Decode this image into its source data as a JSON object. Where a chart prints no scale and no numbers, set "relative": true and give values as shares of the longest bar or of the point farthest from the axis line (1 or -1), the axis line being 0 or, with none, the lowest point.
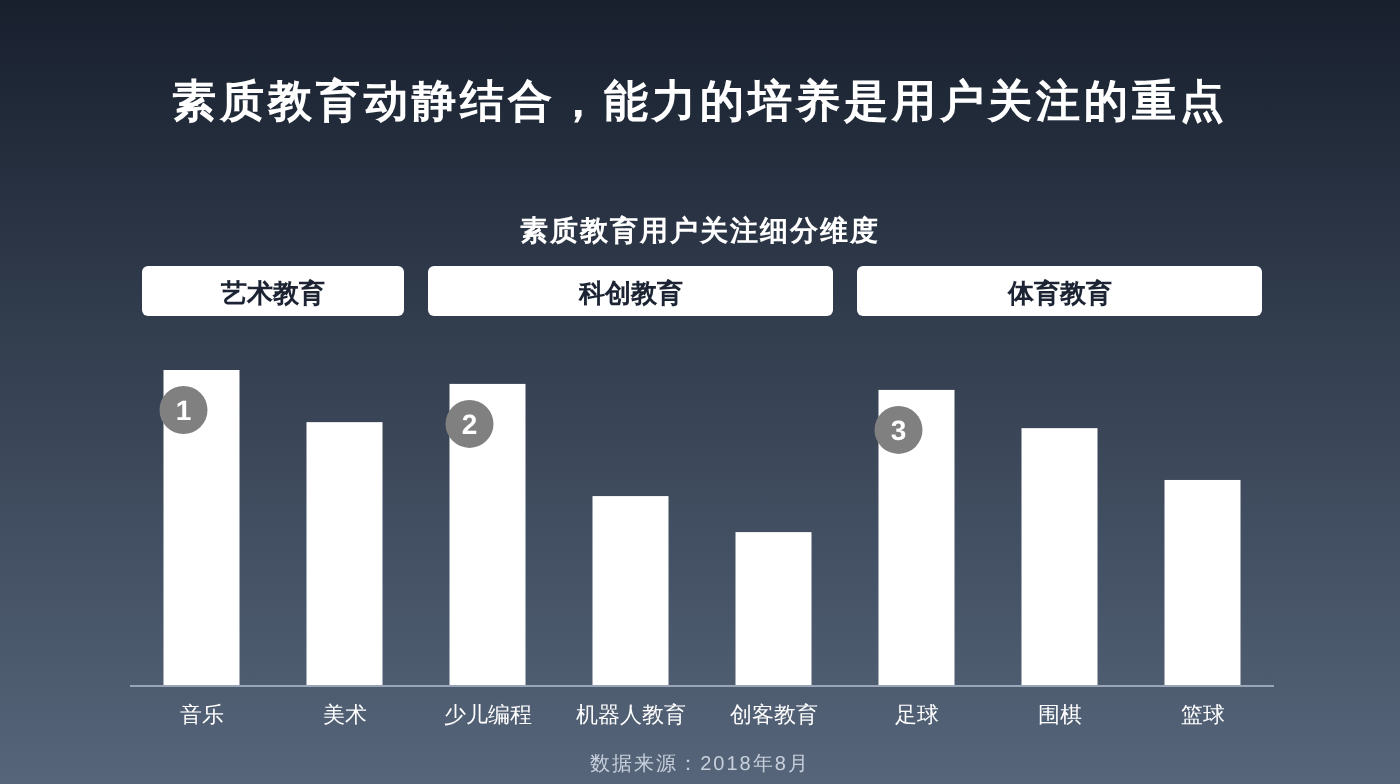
{
  "chart_data": {
    "type": "bar",
    "title": "素质教育动静结合，能力的培养是用户关注的重点",
    "subtitle": "素质教育用户关注细分维度",
    "categories": [
      "音乐",
      "美术",
      "少儿编程",
      "机器人教育",
      "创客教育",
      "足球",
      "围棋",
      "篮球"
    ],
    "values": [
      1,
      0.835,
      0.956,
      0.601,
      0.487,
      0.937,
      0.816,
      0.652
    ],
    "relative": true,
    "color": "#ffffff",
    "annotations": [
      "艺术教育",
      "科创教育",
      "体育教育",
      "1",
      "2",
      "3",
      "数据来源：2018年8月"
    ]
  }
}
